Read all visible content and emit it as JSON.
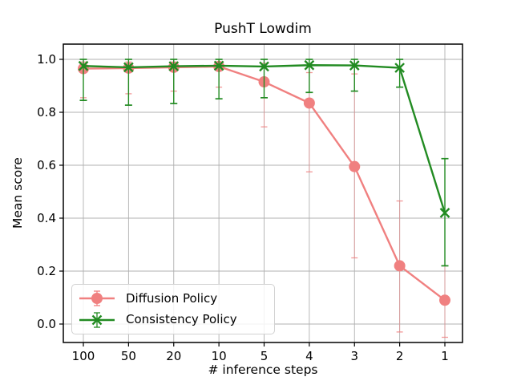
{
  "chart_data": {
    "type": "line",
    "title": "PushT Lowdim",
    "xlabel": "# inference steps",
    "ylabel": "Mean score",
    "categories": [
      "100",
      "50",
      "20",
      "10",
      "5",
      "4",
      "3",
      "2",
      "1"
    ],
    "yticks": [
      0.0,
      0.2,
      0.4,
      0.6,
      0.8,
      1.0
    ],
    "ylim": [
      -0.07,
      1.06
    ],
    "grid": true,
    "grid_color": "#b0b0b0",
    "legend_position": "lower left",
    "series": [
      {
        "name": "Diffusion Policy",
        "color": "#f08080",
        "marker": "circle",
        "values": [
          0.965,
          0.967,
          0.97,
          0.973,
          0.915,
          0.835,
          0.595,
          0.22,
          0.09
        ],
        "err_low": [
          0.855,
          0.87,
          0.88,
          0.895,
          0.745,
          0.575,
          0.25,
          -0.03,
          -0.05
        ],
        "err_high": [
          0.99,
          0.99,
          0.99,
          0.99,
          0.985,
          0.95,
          0.945,
          0.465,
          0.22
        ]
      },
      {
        "name": "Consistency Policy",
        "color": "#228b22",
        "marker": "x",
        "values": [
          0.975,
          0.97,
          0.974,
          0.976,
          0.973,
          0.978,
          0.977,
          0.968,
          0.42
        ],
        "err_low": [
          0.845,
          0.827,
          0.833,
          0.851,
          0.855,
          0.875,
          0.88,
          0.895,
          0.22
        ],
        "err_high": [
          1.0,
          1.0,
          1.0,
          1.0,
          1.0,
          1.0,
          1.0,
          1.0,
          0.625
        ]
      }
    ]
  }
}
